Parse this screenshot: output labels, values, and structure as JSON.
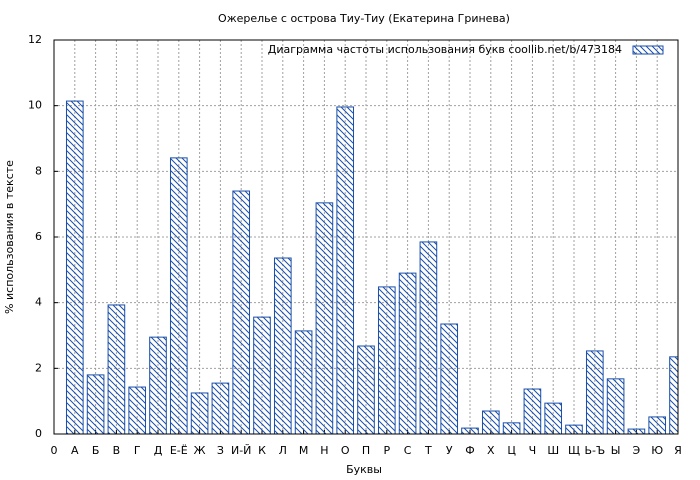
{
  "chart_data": {
    "type": "bar",
    "title": "Ожерелье с острова Тиу-Тиу (Екатерина Гринева)",
    "x_label": "Буквы",
    "y_label": "% использования в тексте",
    "categories": [
      "0",
      "А",
      "Б",
      "В",
      "Г",
      "Д",
      "Е-Ё",
      "Ж",
      "З",
      "И-Й",
      "К",
      "Л",
      "М",
      "Н",
      "О",
      "П",
      "Р",
      "С",
      "Т",
      "У",
      "Ф",
      "Х",
      "Ц",
      "Ч",
      "Ш",
      "Щ",
      "Ь-Ъ",
      "Ы",
      "Э",
      "Ю",
      "Я"
    ],
    "series": [
      {
        "name": "Диаграмма частоты использования букв  coollib.net/b/473184",
        "color": "#1a4fa8",
        "values": [
          null,
          10.14,
          1.8,
          3.93,
          1.43,
          2.95,
          8.41,
          1.25,
          1.55,
          7.4,
          3.56,
          5.36,
          3.14,
          7.04,
          9.96,
          2.68,
          4.48,
          4.9,
          5.85,
          3.35,
          0.18,
          0.7,
          0.34,
          1.37,
          0.94,
          0.27,
          2.53,
          1.68,
          0.15,
          0.52,
          2.35
        ]
      }
    ],
    "ylim": [
      0,
      12
    ],
    "yticks": [
      0,
      2,
      4,
      6,
      8,
      10,
      12
    ],
    "grid": true,
    "legend": "upper right"
  }
}
